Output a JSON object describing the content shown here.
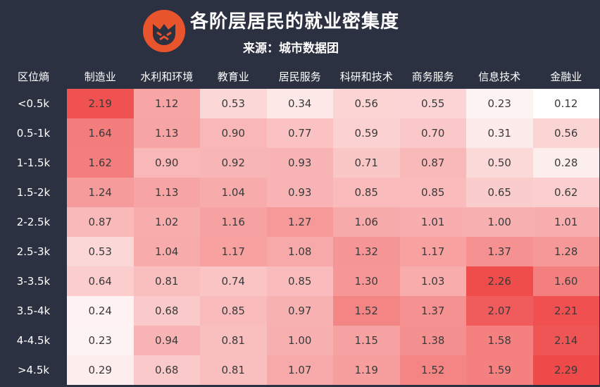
{
  "header": {
    "title": "各阶层居民的就业密集度",
    "source": "来源：城市数据团"
  },
  "chart_data": {
    "type": "heatmap",
    "corner_label": "区位熵",
    "columns": [
      "制造业",
      "水利和环境",
      "教育业",
      "居民服务",
      "科研和技术",
      "商务服务",
      "信息技术",
      "金融业"
    ],
    "rows": [
      "<0.5k",
      "0.5-1k",
      "1-1.5k",
      "1.5-2k",
      "2-2.5k",
      "2.5-3k",
      "3-3.5k",
      "3.5-4k",
      "4-4.5k",
      ">4.5k"
    ],
    "values": [
      [
        "2.19",
        "1.12",
        "0.53",
        "0.34",
        "0.56",
        "0.55",
        "0.23",
        "0.12"
      ],
      [
        "1.64",
        "1.13",
        "0.90",
        "0.77",
        "0.59",
        "0.70",
        "0.31",
        "0.56"
      ],
      [
        "1.62",
        "0.90",
        "0.92",
        "0.93",
        "0.71",
        "0.87",
        "0.50",
        "0.28"
      ],
      [
        "1.24",
        "1.13",
        "1.04",
        "0.93",
        "0.85",
        "0.85",
        "0.65",
        "0.62"
      ],
      [
        "0.87",
        "1.02",
        "1.16",
        "1.27",
        "1.06",
        "1.01",
        "1.00",
        "1.01"
      ],
      [
        "0.53",
        "1.04",
        "1.17",
        "1.08",
        "1.32",
        "1.17",
        "1.37",
        "1.28"
      ],
      [
        "0.64",
        "0.81",
        "0.74",
        "0.85",
        "1.30",
        "1.03",
        "2.26",
        "1.60"
      ],
      [
        "0.24",
        "0.68",
        "0.85",
        "0.97",
        "1.52",
        "1.37",
        "2.07",
        "2.21"
      ],
      [
        "0.23",
        "0.94",
        "0.81",
        "1.00",
        "1.15",
        "1.38",
        "1.58",
        "2.14"
      ],
      [
        "0.29",
        "0.68",
        "0.81",
        "1.07",
        "1.19",
        "1.52",
        "1.59",
        "2.29"
      ]
    ],
    "color_low": "#ffffff",
    "color_high": "#ef4a4a"
  }
}
